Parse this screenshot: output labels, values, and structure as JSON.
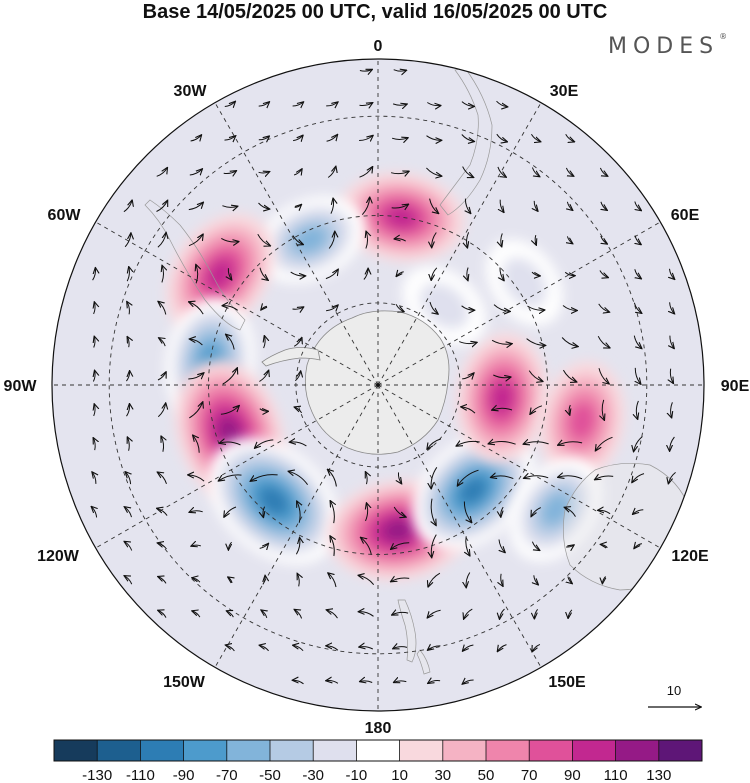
{
  "title": "Base 14/05/2025 00 UTC, valid 16/05/2025 00 UTC",
  "brand": "MODES",
  "brand_mark": "®",
  "longitude_labels": {
    "lon_0": "0",
    "lon_30e": "30E",
    "lon_60e": "60E",
    "lon_90e": "90E",
    "lon_120e": "120E",
    "lon_150e": "150E",
    "lon_180": "180",
    "lon_150w": "150W",
    "lon_120w": "120W",
    "lon_90w": "90W",
    "lon_60w": "60W",
    "lon_30w": "30W"
  },
  "reference_vector": {
    "label": "10"
  },
  "colorbar": {
    "colors": [
      "#163b5c",
      "#1d5f8f",
      "#2d7db4",
      "#4d9bcc",
      "#82b4da",
      "#b5cbe4",
      "#dfe0ee",
      "#ffffff",
      "#f9d9de",
      "#f5b3c4",
      "#ef85ac",
      "#e0519a",
      "#c22890",
      "#951a86",
      "#5e1677"
    ],
    "ticks": [
      "-130",
      "-110",
      "-90",
      "-70",
      "-50",
      "-30",
      "-10",
      "10",
      "30",
      "50",
      "70",
      "90",
      "110",
      "130"
    ]
  },
  "map_data": {
    "projection": "south polar stereographic",
    "anomaly_centers": [
      {
        "lon": 8,
        "lat": -50,
        "value": 90
      },
      {
        "lon": -25,
        "lat": -52,
        "value": -70
      },
      {
        "lon": -55,
        "lat": -45,
        "value": 100
      },
      {
        "lon": -82,
        "lat": -50,
        "value": -90
      },
      {
        "lon": -108,
        "lat": -53,
        "value": 125
      },
      {
        "lon": -138,
        "lat": -53,
        "value": -125
      },
      {
        "lon": 172,
        "lat": -55,
        "value": 115
      },
      {
        "lon": 138,
        "lat": -56,
        "value": -110
      },
      {
        "lon": 96,
        "lat": -60,
        "value": 95
      },
      {
        "lon": 100,
        "lat": -42,
        "value": 80
      },
      {
        "lon": 125,
        "lat": -40,
        "value": -70
      },
      {
        "lon": 55,
        "lat": -48,
        "value": -40
      },
      {
        "lon": 40,
        "lat": -65,
        "value": -40
      }
    ]
  }
}
